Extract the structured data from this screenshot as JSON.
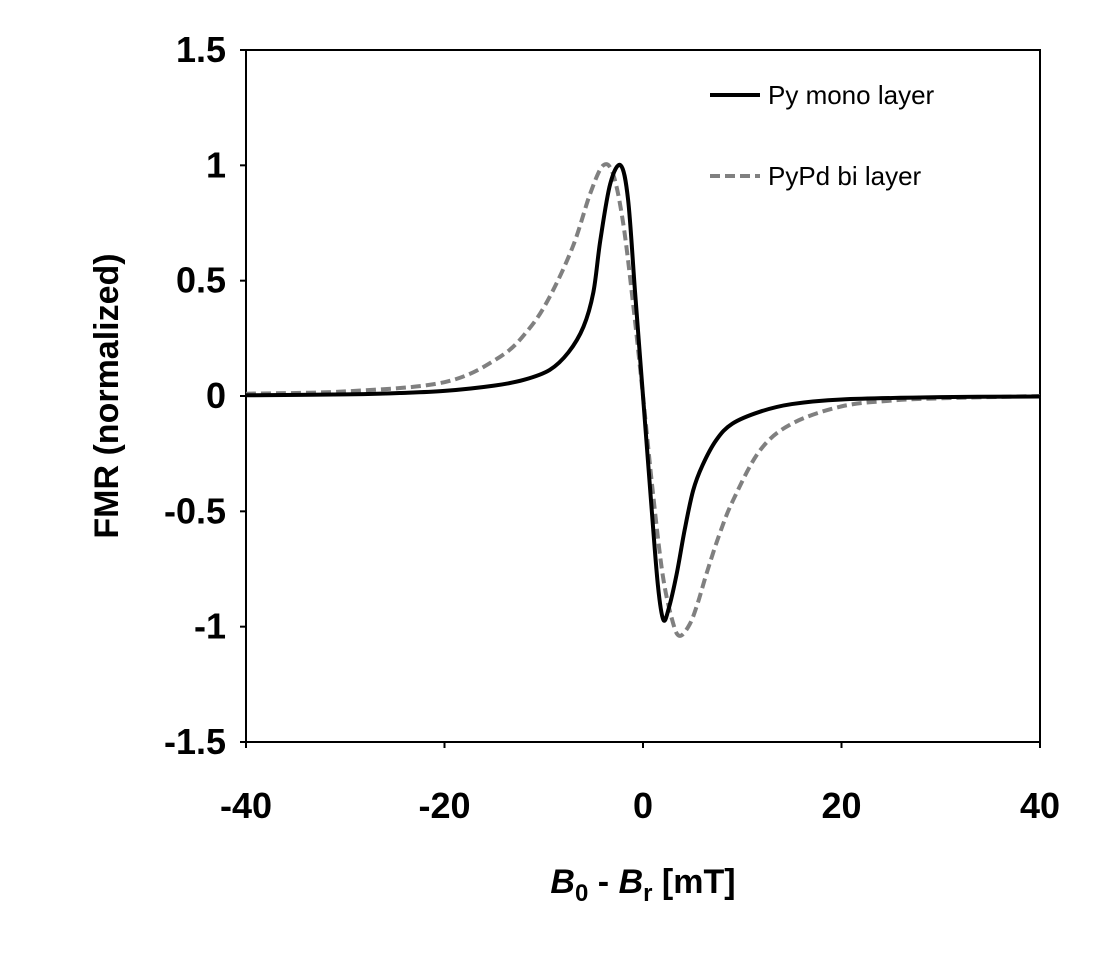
{
  "chart_data": {
    "type": "line",
    "title": "",
    "xlabel": {
      "main_1": "B",
      "sub_1": "0",
      "mid": " - ",
      "main_2": "B",
      "sub_2": "r",
      "unit": " [mT]"
    },
    "ylabel": "FMR (normalized)",
    "xlim": [
      -40,
      40
    ],
    "ylim": [
      -1.5,
      1.5
    ],
    "x_ticks": [
      "-40",
      "-20",
      "0",
      "20",
      "40"
    ],
    "y_ticks": [
      "1.5",
      "1",
      "0.5",
      "0",
      "-0.5",
      "-1",
      "-1.5"
    ],
    "grid": false,
    "legend_position": "top-right",
    "series": [
      {
        "name": "Py mono layer",
        "color": "#000000",
        "style": "solid",
        "x": [
          -40,
          -30,
          -24.5,
          -20,
          -15,
          -12,
          -9.4,
          -7.5,
          -6,
          -5,
          -4.3,
          -3.3,
          -2.25,
          -1.5,
          -0.8,
          0,
          0.8,
          1.5,
          2.05,
          2.6,
          3.4,
          4.2,
          5.05,
          6,
          7.4,
          9,
          11.8,
          15,
          20,
          30,
          40
        ],
        "y": [
          0.003,
          0.007,
          0.013,
          0.022,
          0.045,
          0.07,
          0.113,
          0.19,
          0.3,
          0.45,
          0.675,
          0.92,
          1.0,
          0.85,
          0.45,
          0,
          -0.45,
          -0.82,
          -0.97,
          -0.92,
          -0.77,
          -0.58,
          -0.41,
          -0.3,
          -0.19,
          -0.12,
          -0.068,
          -0.035,
          -0.015,
          -0.005,
          -0.002
        ]
      },
      {
        "name": "PyPd bi layer",
        "color": "#808080",
        "style": "dashed",
        "x": [
          -40,
          -30,
          -20,
          -14.4,
          -11.5,
          -9.4,
          -7.05,
          -5.3,
          -4,
          -3,
          -2,
          -1,
          0,
          1,
          2,
          3,
          3.7,
          4.7,
          5.5,
          6.4,
          7.7,
          9.1,
          11.8,
          15,
          20,
          25,
          30,
          40
        ],
        "y": [
          0.01,
          0.02,
          0.06,
          0.17,
          0.29,
          0.43,
          0.65,
          0.88,
          1.0,
          0.96,
          0.75,
          0.4,
          0,
          -0.42,
          -0.78,
          -0.98,
          -1.04,
          -0.99,
          -0.9,
          -0.77,
          -0.6,
          -0.45,
          -0.235,
          -0.12,
          -0.045,
          -0.02,
          -0.01,
          0
        ]
      }
    ]
  }
}
